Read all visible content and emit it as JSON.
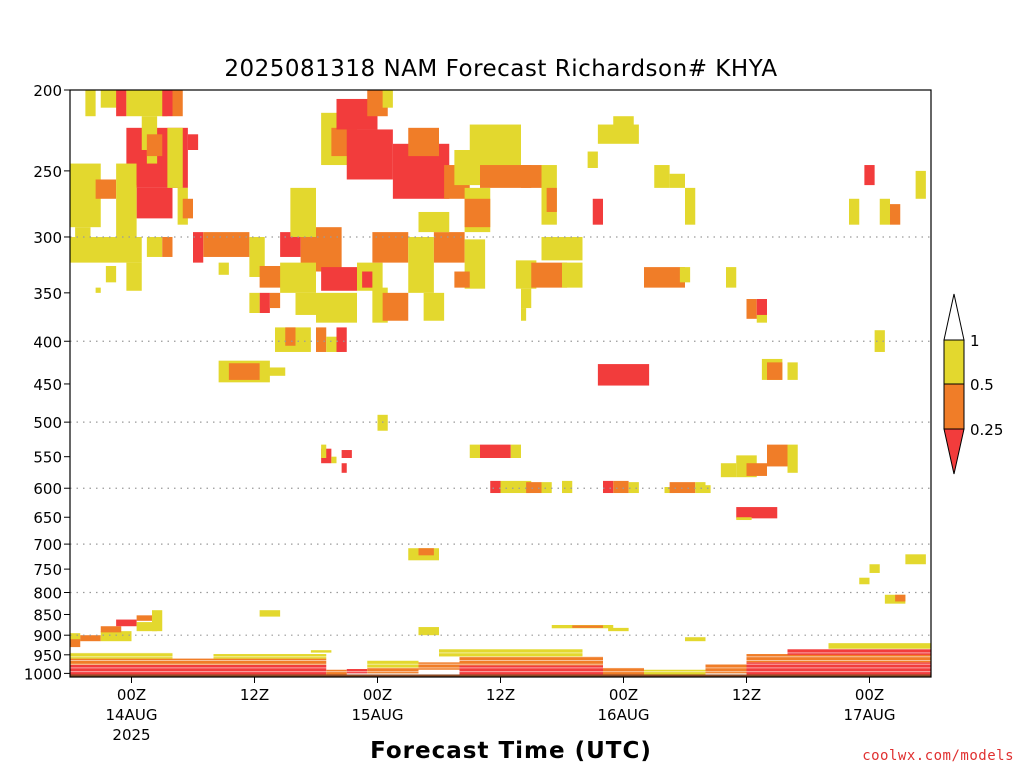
{
  "chart_data": {
    "type": "heatmap",
    "title": "2025081318 NAM Forecast Richardson# KHYA",
    "xlabel": "Forecast Time (UTC)",
    "credit": "coolwx.com/models",
    "y_axis": {
      "scale": "log-pressure",
      "units": "hPa",
      "ylim": [
        1010,
        200
      ],
      "ticks": [
        200,
        250,
        300,
        350,
        400,
        450,
        500,
        550,
        600,
        650,
        700,
        750,
        800,
        850,
        900,
        950,
        1000
      ],
      "grid_levels": [
        300,
        400,
        500,
        600,
        700,
        800,
        900
      ]
    },
    "x_axis": {
      "units": "forecast hour",
      "xlim": [
        0,
        84
      ],
      "ticks": [
        {
          "hour": 6,
          "label": "00Z",
          "sublabel": "14AUG",
          "year": "2025"
        },
        {
          "hour": 18,
          "label": "12Z",
          "sublabel": "",
          "year": ""
        },
        {
          "hour": 30,
          "label": "00Z",
          "sublabel": "15AUG",
          "year": ""
        },
        {
          "hour": 42,
          "label": "12Z",
          "sublabel": "",
          "year": ""
        },
        {
          "hour": 54,
          "label": "00Z",
          "sublabel": "16AUG",
          "year": ""
        },
        {
          "hour": 66,
          "label": "12Z",
          "sublabel": "",
          "year": ""
        },
        {
          "hour": 78,
          "label": "00Z",
          "sublabel": "17AUG",
          "year": ""
        }
      ]
    },
    "colorbar": {
      "levels": [
        "1",
        "0.5",
        "0.25"
      ],
      "bins": [
        {
          "name": "0.5-1",
          "color": "#e3d82e"
        },
        {
          "name": "0.25-0.5",
          "color": "#f07d28"
        },
        {
          "name": "<0.25",
          "color": "#f23c3c"
        }
      ],
      "above_color": "#ffffff"
    },
    "cells": [
      [
        "y",
        1.5,
        2.5,
        200,
        215
      ],
      [
        "y",
        3,
        5,
        200,
        210
      ],
      [
        "r",
        4.5,
        5.5,
        200,
        215
      ],
      [
        "y",
        5.5,
        9.5,
        200,
        215
      ],
      [
        "r",
        9,
        10,
        200,
        215
      ],
      [
        "o",
        10,
        11,
        200,
        215
      ],
      [
        "r",
        5.5,
        11.5,
        222,
        262
      ],
      [
        "r",
        6.5,
        10,
        262,
        285
      ],
      [
        "y",
        9.5,
        11,
        222,
        262
      ],
      [
        "r",
        11.5,
        12.5,
        226,
        236
      ],
      [
        "y",
        0,
        3,
        245,
        292
      ],
      [
        "o",
        2.5,
        4.5,
        256,
        270
      ],
      [
        "y",
        4.5,
        6.5,
        245,
        300
      ],
      [
        "y",
        0.5,
        2,
        292,
        300
      ],
      [
        "y",
        10.5,
        11.5,
        262,
        290
      ],
      [
        "o",
        11,
        12,
        270,
        285
      ],
      [
        "r",
        12,
        13,
        296,
        322
      ],
      [
        "o",
        13,
        17.5,
        296,
        317
      ],
      [
        "y",
        17.5,
        19,
        300,
        335
      ],
      [
        "r",
        20.5,
        22.5,
        296,
        317
      ],
      [
        "o",
        22.5,
        26.5,
        292,
        330
      ],
      [
        "y",
        21.5,
        24,
        262,
        300
      ],
      [
        "y",
        0,
        7,
        300,
        322
      ],
      [
        "y",
        7.5,
        9,
        300,
        317
      ],
      [
        "o",
        9,
        10,
        300,
        317
      ],
      [
        "y",
        14.5,
        15.5,
        322,
        333
      ],
      [
        "y",
        3.5,
        4.5,
        325,
        340
      ],
      [
        "y",
        5.5,
        7,
        322,
        348
      ],
      [
        "y",
        2.5,
        3,
        345,
        350
      ],
      [
        "o",
        18.5,
        21,
        325,
        345
      ],
      [
        "y",
        20.5,
        24,
        322,
        350
      ],
      [
        "r",
        24.5,
        28,
        326,
        348
      ],
      [
        "y",
        28,
        30.5,
        322,
        348
      ],
      [
        "r",
        28.5,
        29.5,
        330,
        345
      ],
      [
        "o",
        29.5,
        33,
        296,
        322
      ],
      [
        "y",
        33,
        35.5,
        300,
        350
      ],
      [
        "o",
        35.5,
        38.5,
        296,
        322
      ],
      [
        "y",
        38.5,
        40.5,
        302,
        346
      ],
      [
        "o",
        37.5,
        39,
        330,
        345
      ],
      [
        "y",
        24,
        28,
        350,
        380
      ],
      [
        "y",
        29.5,
        31,
        345,
        380
      ],
      [
        "o",
        30.5,
        33,
        350,
        378
      ],
      [
        "y",
        34.5,
        36.5,
        350,
        378
      ],
      [
        "r",
        18.5,
        19.5,
        350,
        370
      ],
      [
        "o",
        19.5,
        20.5,
        350,
        365
      ],
      [
        "y",
        17.5,
        18.5,
        350,
        370
      ],
      [
        "y",
        22,
        24,
        350,
        372
      ],
      [
        "y",
        20,
        23.5,
        385,
        412
      ],
      [
        "o",
        21,
        22,
        385,
        405
      ],
      [
        "o",
        24,
        25,
        385,
        412
      ],
      [
        "y",
        25,
        26.5,
        395,
        412
      ],
      [
        "r",
        26,
        27,
        385,
        412
      ],
      [
        "y",
        14.5,
        19.5,
        422,
        448
      ],
      [
        "o",
        15.5,
        18.5,
        425,
        445
      ],
      [
        "y",
        19,
        21,
        430,
        440
      ],
      [
        "y",
        0,
        2,
        255,
        275
      ],
      [
        "y",
        7,
        8.5,
        215,
        245
      ],
      [
        "r",
        6.5,
        7.5,
        236,
        260
      ],
      [
        "o",
        7.5,
        9,
        226,
        240
      ],
      [
        "y",
        24.5,
        27.5,
        213,
        246
      ],
      [
        "o",
        25.5,
        28,
        222,
        240
      ],
      [
        "r",
        26,
        30,
        205,
        223
      ],
      [
        "o",
        29,
        31,
        200,
        215
      ],
      [
        "y",
        30.5,
        31.5,
        200,
        210
      ],
      [
        "r",
        27,
        31.5,
        223,
        256
      ],
      [
        "r",
        31.5,
        37,
        232,
        270
      ],
      [
        "o",
        33,
        36,
        222,
        240
      ],
      [
        "y",
        34,
        37,
        280,
        296
      ],
      [
        "o",
        36.5,
        39,
        246,
        270
      ],
      [
        "y",
        37.5,
        44,
        236,
        260
      ],
      [
        "y",
        38.5,
        41,
        262,
        296
      ],
      [
        "o",
        38.5,
        41,
        270,
        292
      ],
      [
        "y",
        39,
        44,
        220,
        236
      ],
      [
        "o",
        40,
        45,
        246,
        262
      ],
      [
        "o",
        44,
        46,
        246,
        262
      ],
      [
        "y",
        46,
        47.5,
        246,
        290
      ],
      [
        "o",
        46.5,
        47.5,
        262,
        280
      ],
      [
        "r",
        51,
        52,
        270,
        290
      ],
      [
        "y",
        50.5,
        51.5,
        237,
        248
      ],
      [
        "y",
        51.5,
        55.5,
        220,
        232
      ],
      [
        "y",
        53,
        55,
        215,
        222
      ],
      [
        "y",
        57,
        58.5,
        246,
        262
      ],
      [
        "y",
        58.5,
        60,
        252,
        262
      ],
      [
        "y",
        60,
        61,
        262,
        290
      ],
      [
        "y",
        46,
        50,
        300,
        320
      ],
      [
        "y",
        43.5,
        45.5,
        320,
        346
      ],
      [
        "o",
        45,
        48.5,
        322,
        345
      ],
      [
        "y",
        48,
        50,
        322,
        345
      ],
      [
        "y",
        44,
        45,
        346,
        365
      ],
      [
        "y",
        44,
        44.5,
        365,
        378
      ],
      [
        "o",
        56,
        60,
        326,
        345
      ],
      [
        "y",
        59.5,
        60.5,
        326,
        340
      ],
      [
        "y",
        64,
        65,
        326,
        345
      ],
      [
        "o",
        66,
        67,
        356,
        376
      ],
      [
        "r",
        67,
        68,
        356,
        376
      ],
      [
        "y",
        67,
        68,
        372,
        380
      ],
      [
        "r",
        77.5,
        78.5,
        246,
        260
      ],
      [
        "y",
        76,
        77,
        270,
        290
      ],
      [
        "y",
        79,
        80,
        270,
        290
      ],
      [
        "o",
        80,
        81,
        274,
        290
      ],
      [
        "y",
        82.5,
        83.5,
        250,
        270
      ],
      [
        "y",
        78.5,
        79.5,
        388,
        412
      ],
      [
        "r",
        51.5,
        56.5,
        426,
        452
      ],
      [
        "y",
        67.5,
        69.5,
        420,
        445
      ],
      [
        "o",
        68,
        69.5,
        424,
        445
      ],
      [
        "y",
        70,
        71,
        424,
        445
      ],
      [
        "y",
        30,
        31,
        490,
        512
      ],
      [
        "r",
        24.5,
        25.5,
        538,
        560
      ],
      [
        "y",
        25.5,
        26,
        550,
        560
      ],
      [
        "r",
        26.5,
        27.5,
        540,
        552
      ],
      [
        "y",
        24.5,
        25,
        532,
        552
      ],
      [
        "r",
        26.5,
        27,
        560,
        575
      ],
      [
        "y",
        39,
        40,
        532,
        552
      ],
      [
        "r",
        40,
        43,
        532,
        552
      ],
      [
        "y",
        43,
        44,
        532,
        552
      ],
      [
        "y",
        63.5,
        65,
        560,
        582
      ],
      [
        "y",
        65,
        67,
        548,
        582
      ],
      [
        "o",
        66,
        68,
        560,
        580
      ],
      [
        "o",
        68,
        70,
        532,
        565
      ],
      [
        "y",
        70,
        71,
        532,
        575
      ],
      [
        "r",
        41,
        42,
        588,
        608
      ],
      [
        "y",
        42,
        45,
        588,
        608
      ],
      [
        "o",
        44.5,
        46,
        590,
        608
      ],
      [
        "y",
        46,
        47,
        590,
        608
      ],
      [
        "y",
        48,
        49,
        588,
        608
      ],
      [
        "r",
        52,
        53,
        588,
        608
      ],
      [
        "o",
        53,
        54.5,
        588,
        608
      ],
      [
        "y",
        54.5,
        55.5,
        590,
        608
      ],
      [
        "y",
        58,
        59,
        598,
        608
      ],
      [
        "o",
        58.5,
        61,
        590,
        608
      ],
      [
        "y",
        61,
        62,
        590,
        608
      ],
      [
        "y",
        62,
        62.5,
        595,
        608
      ],
      [
        "r",
        65,
        69,
        632,
        652
      ],
      [
        "y",
        65,
        66.5,
        650,
        655
      ],
      [
        "y",
        33,
        36,
        708,
        732
      ],
      [
        "o",
        34,
        35.5,
        708,
        722
      ],
      [
        "y",
        78,
        79,
        740,
        758
      ],
      [
        "y",
        77,
        78,
        768,
        782
      ],
      [
        "y",
        81.5,
        83.5,
        720,
        740
      ],
      [
        "y",
        79.5,
        81.5,
        805,
        825
      ],
      [
        "o",
        80.5,
        81.5,
        805,
        820
      ],
      [
        "y",
        18.5,
        20.5,
        840,
        855
      ],
      [
        "y",
        34,
        36,
        880,
        900
      ],
      [
        "y",
        47,
        53,
        875,
        883
      ],
      [
        "o",
        49,
        52,
        876,
        882
      ],
      [
        "y",
        52.5,
        54.5,
        882,
        890
      ],
      [
        "y",
        60,
        62,
        905,
        915
      ],
      [
        "y",
        23.5,
        25.5,
        938,
        945
      ],
      [
        "y",
        0,
        1,
        895,
        915
      ],
      [
        "o",
        1,
        3,
        900,
        915
      ],
      [
        "y",
        3,
        6,
        890,
        915
      ],
      [
        "o",
        3,
        5,
        878,
        893
      ],
      [
        "r",
        4.5,
        6.5,
        862,
        878
      ],
      [
        "o",
        6.5,
        8,
        852,
        865
      ],
      [
        "y",
        6.5,
        8.5,
        868,
        890
      ],
      [
        "y",
        8,
        9,
        840,
        890
      ],
      [
        "o",
        0,
        1,
        910,
        930
      ]
    ],
    "surface_layers": [
      {
        "cat": "r",
        "x0": 0,
        "x1": 25,
        "p0": 977,
        "p1": 1003
      },
      {
        "cat": "o",
        "x0": 0,
        "x1": 25,
        "p0": 960,
        "p1": 977
      },
      {
        "cat": "y",
        "x0": 0,
        "x1": 10,
        "p0": 945,
        "p1": 960
      },
      {
        "cat": "y",
        "x0": 14,
        "x1": 25,
        "p0": 948,
        "p1": 960
      },
      {
        "cat": "o",
        "x0": 25,
        "x1": 27,
        "p0": 990,
        "p1": 1003
      },
      {
        "cat": "r",
        "x0": 27,
        "x1": 29,
        "p0": 988,
        "p1": 1000
      },
      {
        "cat": "y",
        "x0": 29,
        "x1": 34,
        "p0": 965,
        "p1": 985
      },
      {
        "cat": "o",
        "x0": 29,
        "x1": 34,
        "p0": 985,
        "p1": 1000
      },
      {
        "cat": "o",
        "x0": 34,
        "x1": 38,
        "p0": 970,
        "p1": 990
      },
      {
        "cat": "r",
        "x0": 38,
        "x1": 52,
        "p0": 978,
        "p1": 1003
      },
      {
        "cat": "o",
        "x0": 38,
        "x1": 52,
        "p0": 955,
        "p1": 978
      },
      {
        "cat": "y",
        "x0": 36,
        "x1": 50,
        "p0": 935,
        "p1": 955
      },
      {
        "cat": "o",
        "x0": 52,
        "x1": 56,
        "p0": 985,
        "p1": 1003
      },
      {
        "cat": "y",
        "x0": 56,
        "x1": 62,
        "p0": 990,
        "p1": 1003
      },
      {
        "cat": "o",
        "x0": 62,
        "x1": 66,
        "p0": 975,
        "p1": 1000
      },
      {
        "cat": "r",
        "x0": 66,
        "x1": 84,
        "p0": 970,
        "p1": 1003
      },
      {
        "cat": "o",
        "x0": 66,
        "x1": 84,
        "p0": 948,
        "p1": 970
      },
      {
        "cat": "r",
        "x0": 70,
        "x1": 84,
        "p0": 935,
        "p1": 950
      },
      {
        "cat": "y",
        "x0": 74,
        "x1": 84,
        "p0": 920,
        "p1": 935
      }
    ],
    "ground": {
      "color": "#8b4a25",
      "p_top": 1003
    }
  }
}
